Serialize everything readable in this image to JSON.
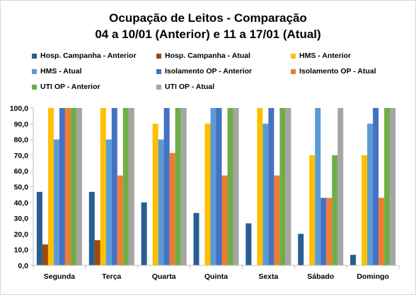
{
  "chart_data": {
    "type": "bar",
    "title_lines": [
      "Ocupação de Leitos - Comparação",
      "04 a 10/01 (Anterior) e 11 a 17/01 (Atual)"
    ],
    "xlabel": "",
    "ylabel": "",
    "ylim": [
      0,
      100
    ],
    "yticks": [
      "0,0",
      "10,0",
      "20,0",
      "30,0",
      "40,0",
      "50,0",
      "60,0",
      "70,0",
      "80,0",
      "90,0",
      "100,0"
    ],
    "grid": false,
    "legend_position": "top",
    "categories": [
      "Segunda",
      "Terça",
      "Quarta",
      "Quinta",
      "Sexta",
      "Sábado",
      "Domingo"
    ],
    "series": [
      {
        "name": "Hosp. Campanha - Anterior",
        "color": "#255e91",
        "values": [
          46.7,
          46.7,
          40.0,
          33.3,
          26.7,
          20.0,
          6.7
        ]
      },
      {
        "name": "Hosp. Campanha - Atual",
        "color": "#9e480e",
        "values": [
          13.3,
          16.0,
          0,
          0,
          0,
          0,
          0
        ]
      },
      {
        "name": "HMS - Anterior",
        "color": "#ffc000",
        "values": [
          100,
          100,
          90,
          90,
          100,
          70,
          70
        ]
      },
      {
        "name": "HMS - Atual",
        "color": "#5b9bd5",
        "values": [
          80,
          80,
          80,
          100,
          90,
          100,
          90
        ]
      },
      {
        "name": "Isolamento OP - Anterior",
        "color": "#4472c4",
        "values": [
          100,
          100,
          100,
          100,
          100,
          42.9,
          100
        ]
      },
      {
        "name": "Isolamento OP - Atual",
        "color": "#ed7d31",
        "values": [
          100,
          57.1,
          71.4,
          57.1,
          57.1,
          42.9,
          42.9
        ]
      },
      {
        "name": "UTI OP - Anterior",
        "color": "#70ad47",
        "values": [
          100,
          100,
          100,
          100,
          100,
          70,
          100
        ]
      },
      {
        "name": "UTI OP - Atual",
        "color": "#a5a5a5",
        "values": [
          100,
          100,
          100,
          100,
          100,
          100,
          100
        ]
      }
    ]
  }
}
